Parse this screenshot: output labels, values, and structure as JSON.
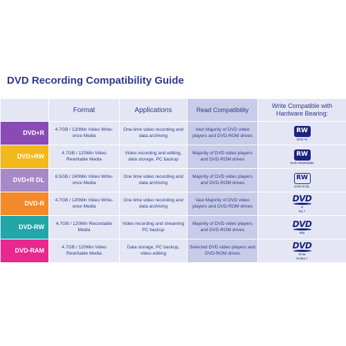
{
  "title": "DVD Recording Compatibility Guide",
  "headers": {
    "format": "Format",
    "applications": "Applications",
    "read": "Read Compatibility",
    "write": "Write Compatible with Hardware Bearing:"
  },
  "rows": [
    {
      "name": "DVD+R",
      "color": "#8a4bb5",
      "format": "4.7GB / 120Min Video Write-once Media",
      "applications": "One-time video recording and data archiving",
      "read": "Vast Majority of DVD video players and DVD-ROM drives",
      "logo": {
        "type": "rw",
        "mark": "RW",
        "caption": "DVD+R"
      }
    },
    {
      "name": "DVD+RW",
      "color": "#f3b81b",
      "format": "4.7GB / 120Min Video Rewritable Media",
      "applications": "Video recording and editing, data storage, PC backup",
      "read": "Majority of DVD video players and DVD-ROM drives",
      "logo": {
        "type": "rw",
        "mark": "RW",
        "caption": "DVD+ReWritable"
      }
    },
    {
      "name": "DVD+R DL",
      "color": "#a789c8",
      "format": "8.5GB / 240Min Video Write-once Media",
      "applications": "One time video recording and data archiving",
      "read": "Majority of DVD video players and DVD-ROM drives",
      "logo": {
        "type": "rwdl",
        "mark": "RW",
        "caption": "DVD+R DL"
      }
    },
    {
      "name": "DVD-R",
      "color": "#f28a2a",
      "format": "4.7GB / 120Min Video Write-once Media",
      "applications": "One time video recording and data archiving",
      "read": "Vast Majority of DVD video players and DVD-ROM drives",
      "logo": {
        "type": "dvd",
        "mark": "DVD",
        "sub": "R",
        "extra": "R4.7"
      }
    },
    {
      "name": "DVD-RW",
      "color": "#22a6a8",
      "format": "4.7GB / 120Min Recordable Media",
      "applications": "Video recording and streaming PC backup",
      "read": "Majority of DVD video players and DVD-ROM drives",
      "logo": {
        "type": "dvd",
        "mark": "DVD",
        "sub": "RW",
        "extra": ""
      }
    },
    {
      "name": "DVD-RAM",
      "color": "#e8278f",
      "format": "4.7GB / 120Min Video Rewritable Media",
      "applications": "Data storage, PC backup, video editing",
      "read": "Selected DVD video players and DVD-ROM drives",
      "logo": {
        "type": "dvd",
        "mark": "DVD",
        "sub": "RAM",
        "extra": "RAM4.7"
      }
    }
  ]
}
